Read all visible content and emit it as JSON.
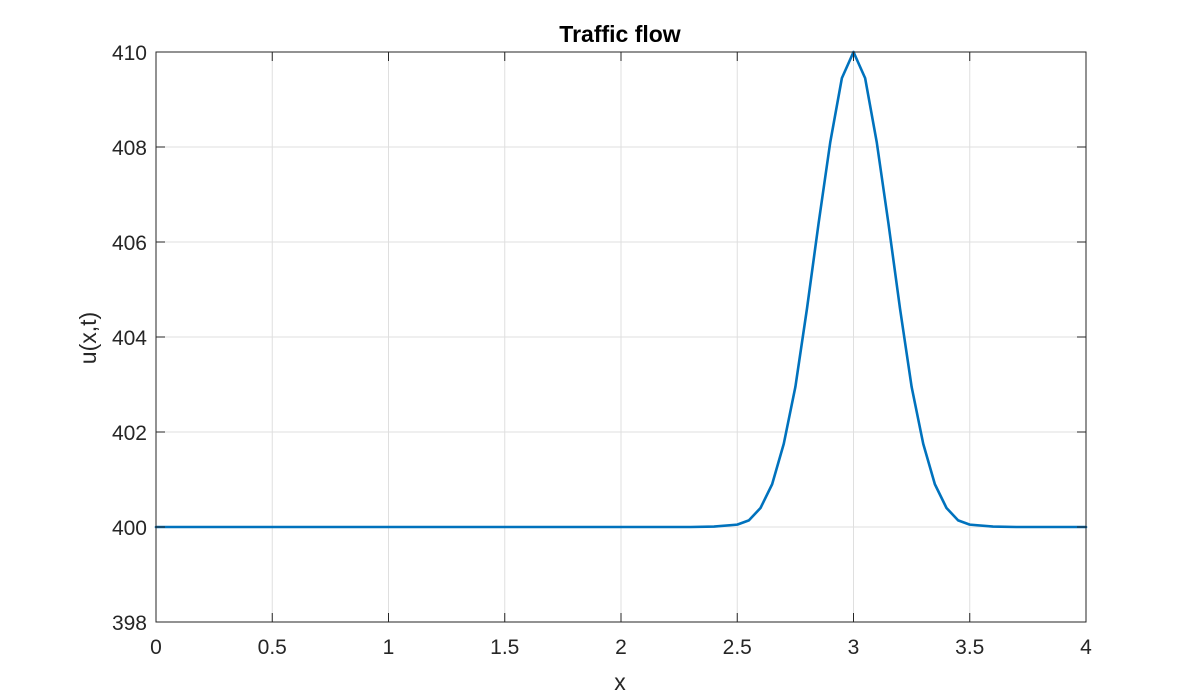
{
  "chart_data": {
    "type": "line",
    "title": "Traffic flow",
    "xlabel": "x",
    "ylabel": "u(x,t)",
    "xlim": [
      0,
      4
    ],
    "ylim": [
      398,
      410
    ],
    "grid": true,
    "x_ticks": [
      "0",
      "0.5",
      "1",
      "1.5",
      "2",
      "2.5",
      "3",
      "3.5",
      "4"
    ],
    "y_ticks": [
      "398",
      "400",
      "402",
      "404",
      "406",
      "408",
      "410"
    ],
    "series": [
      {
        "color": "#0072BD",
        "x": [
          0,
          0.5,
          1,
          1.5,
          2,
          2.3,
          2.4,
          2.5,
          2.55,
          2.6,
          2.65,
          2.7,
          2.75,
          2.8,
          2.85,
          2.9,
          2.95,
          3,
          3.05,
          3.1,
          3.15,
          3.2,
          3.25,
          3.3,
          3.35,
          3.4,
          3.45,
          3.5,
          3.6,
          3.7,
          4
        ],
        "y": [
          400,
          400,
          400,
          400,
          400,
          400,
          400.01,
          400.05,
          400.14,
          400.4,
          400.9,
          401.75,
          402.95,
          404.6,
          406.4,
          408.1,
          409.45,
          410,
          409.45,
          408.1,
          406.4,
          404.6,
          402.95,
          401.75,
          400.9,
          400.4,
          400.14,
          400.05,
          400.01,
          400,
          400
        ]
      }
    ]
  }
}
